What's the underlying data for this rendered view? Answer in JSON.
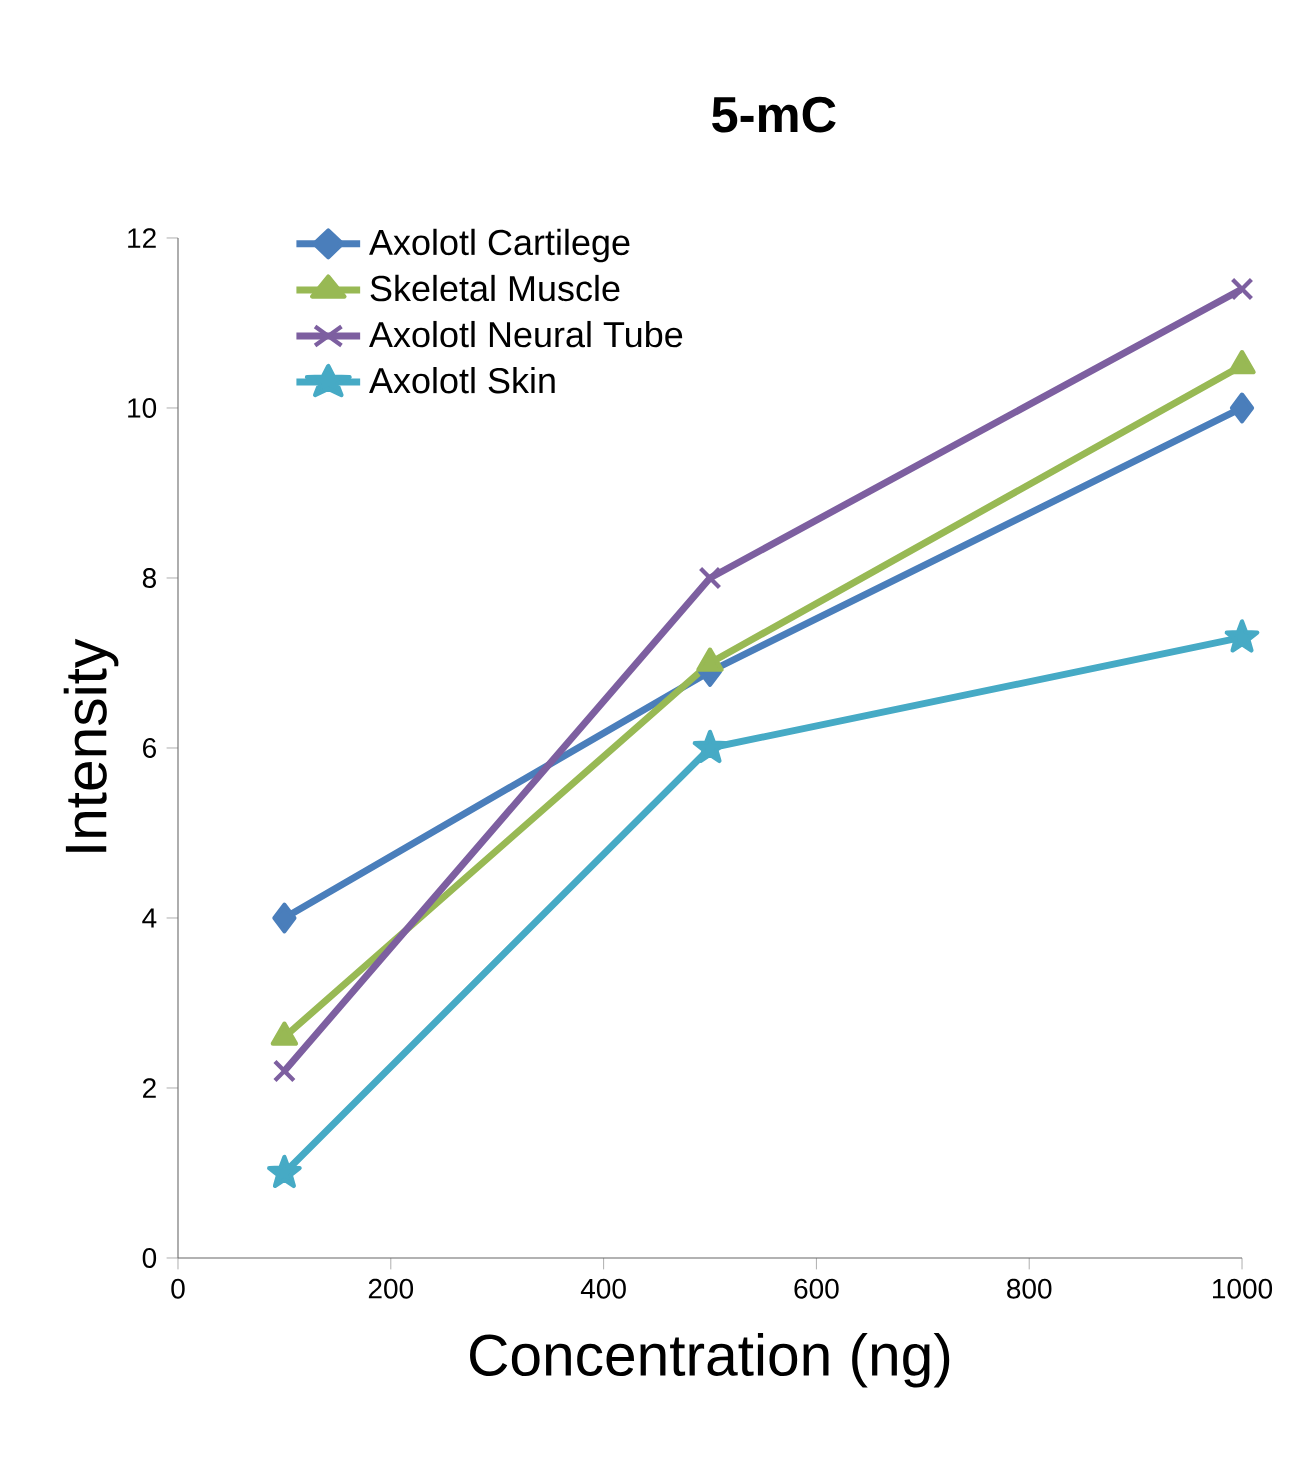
{
  "chart_data": {
    "type": "line",
    "title": "5-mC",
    "xlabel": "Concentration (ng)",
    "ylabel": "Intensity",
    "x": [
      100,
      500,
      1000
    ],
    "series": [
      {
        "name": "Axolotl Cartilege",
        "color": "#4a7ebb",
        "marker": "diamond",
        "values": [
          4.0,
          6.9,
          10.0
        ]
      },
      {
        "name": "Skeletal Muscle",
        "color": "#98b954",
        "marker": "triangle",
        "values": [
          2.6,
          7.0,
          10.5
        ]
      },
      {
        "name": "Axolotl Neural Tube",
        "color": "#7d5fa0",
        "marker": "cross",
        "values": [
          2.2,
          8.0,
          11.4
        ]
      },
      {
        "name": "Axolotl Skin",
        "color": "#46aac5",
        "marker": "star",
        "values": [
          1.0,
          6.0,
          7.3
        ]
      }
    ],
    "xlim": [
      0,
      1000
    ],
    "ylim": [
      0,
      12
    ],
    "xticks": [
      0,
      200,
      400,
      600,
      800,
      1000
    ],
    "yticks": [
      0,
      2,
      4,
      6,
      8,
      10,
      12
    ],
    "grid": false,
    "legend": "top left"
  }
}
